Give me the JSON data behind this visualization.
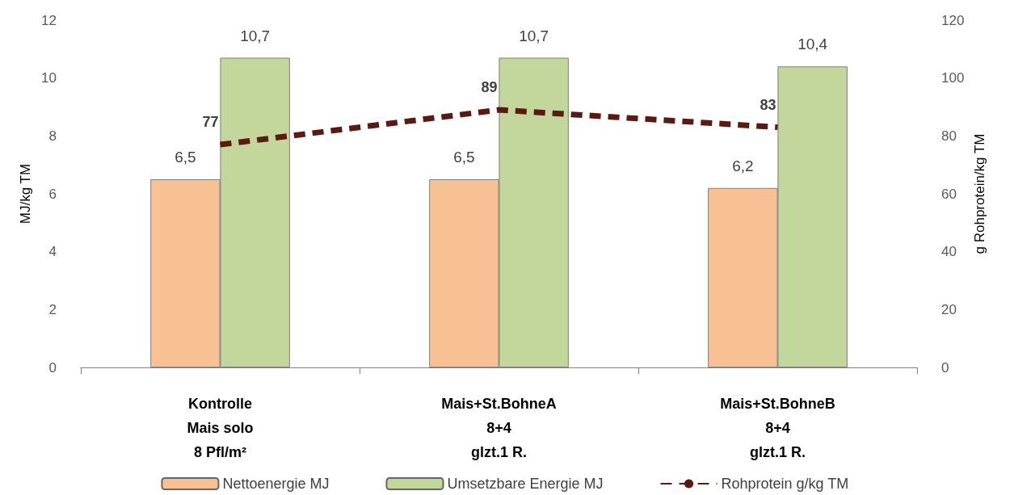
{
  "chart_data": {
    "type": "bar",
    "categories": [
      "Kontrolle\nMais solo\n8 Pfl/m²",
      "Mais+St.BohneA\n8+4\nglzt.1 R.",
      "Mais+St.BohneB\n8+4\nglzt.1 R."
    ],
    "series": [
      {
        "name": "Nettoenergie MJ",
        "color": "#f8c193",
        "values": [
          6.5,
          6.5,
          6.2
        ],
        "value_labels": [
          "6,5",
          "6,5",
          "6,2"
        ]
      },
      {
        "name": "Umsetzbare Energie MJ",
        "color": "#c3d69b",
        "values": [
          10.7,
          10.7,
          10.4
        ],
        "value_labels": [
          "10,7",
          "10,7",
          "10,4"
        ]
      },
      {
        "name": "Rohprotein g/kg TM",
        "type": "line",
        "axis": "y2",
        "color": "#5a1a12",
        "line_style": "dashed",
        "marker": "none",
        "values": [
          77,
          89,
          83
        ],
        "value_labels": [
          "77",
          "89",
          "83"
        ]
      }
    ],
    "ylabel": "MJ/kg TM",
    "y2label": "g Rohprotein/kg TM",
    "ylim": [
      0,
      12
    ],
    "yticks": [
      0,
      2,
      4,
      6,
      8,
      10,
      12
    ],
    "y2lim": [
      0,
      120
    ],
    "y2ticks": [
      0,
      20,
      40,
      60,
      80,
      100,
      120
    ],
    "grid": false,
    "legend": "bottom"
  }
}
